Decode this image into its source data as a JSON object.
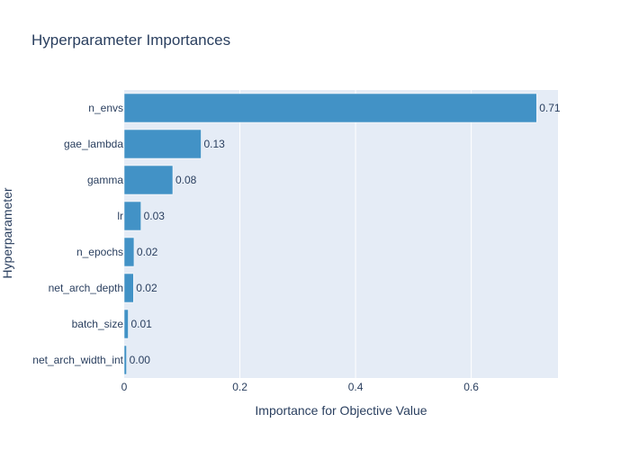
{
  "chart_data": {
    "type": "bar",
    "orientation": "horizontal",
    "title": "Hyperparameter Importances",
    "xlabel": "Importance for Objective Value",
    "ylabel": "Hyperparameter",
    "xlim": [
      0,
      0.75
    ],
    "x_ticks": [
      0,
      0.2,
      0.4,
      0.6
    ],
    "x_tick_labels": [
      "0",
      "0.2",
      "0.4",
      "0.6"
    ],
    "grid": true,
    "categories": [
      "n_envs",
      "gae_lambda",
      "gamma",
      "lr",
      "n_epochs",
      "net_arch_depth",
      "batch_size",
      "net_arch_width_int"
    ],
    "values": [
      0.713,
      0.133,
      0.084,
      0.029,
      0.017,
      0.016,
      0.007,
      0.004
    ],
    "value_labels": [
      "0.71",
      "0.13",
      "0.08",
      "0.03",
      "0.02",
      "0.02",
      "0.01",
      "0.00"
    ],
    "colors": {
      "bar": "#4292c6",
      "plot_bg": "#e5ecf6",
      "grid": "#ffffff",
      "text": "#2a3f5f"
    }
  }
}
